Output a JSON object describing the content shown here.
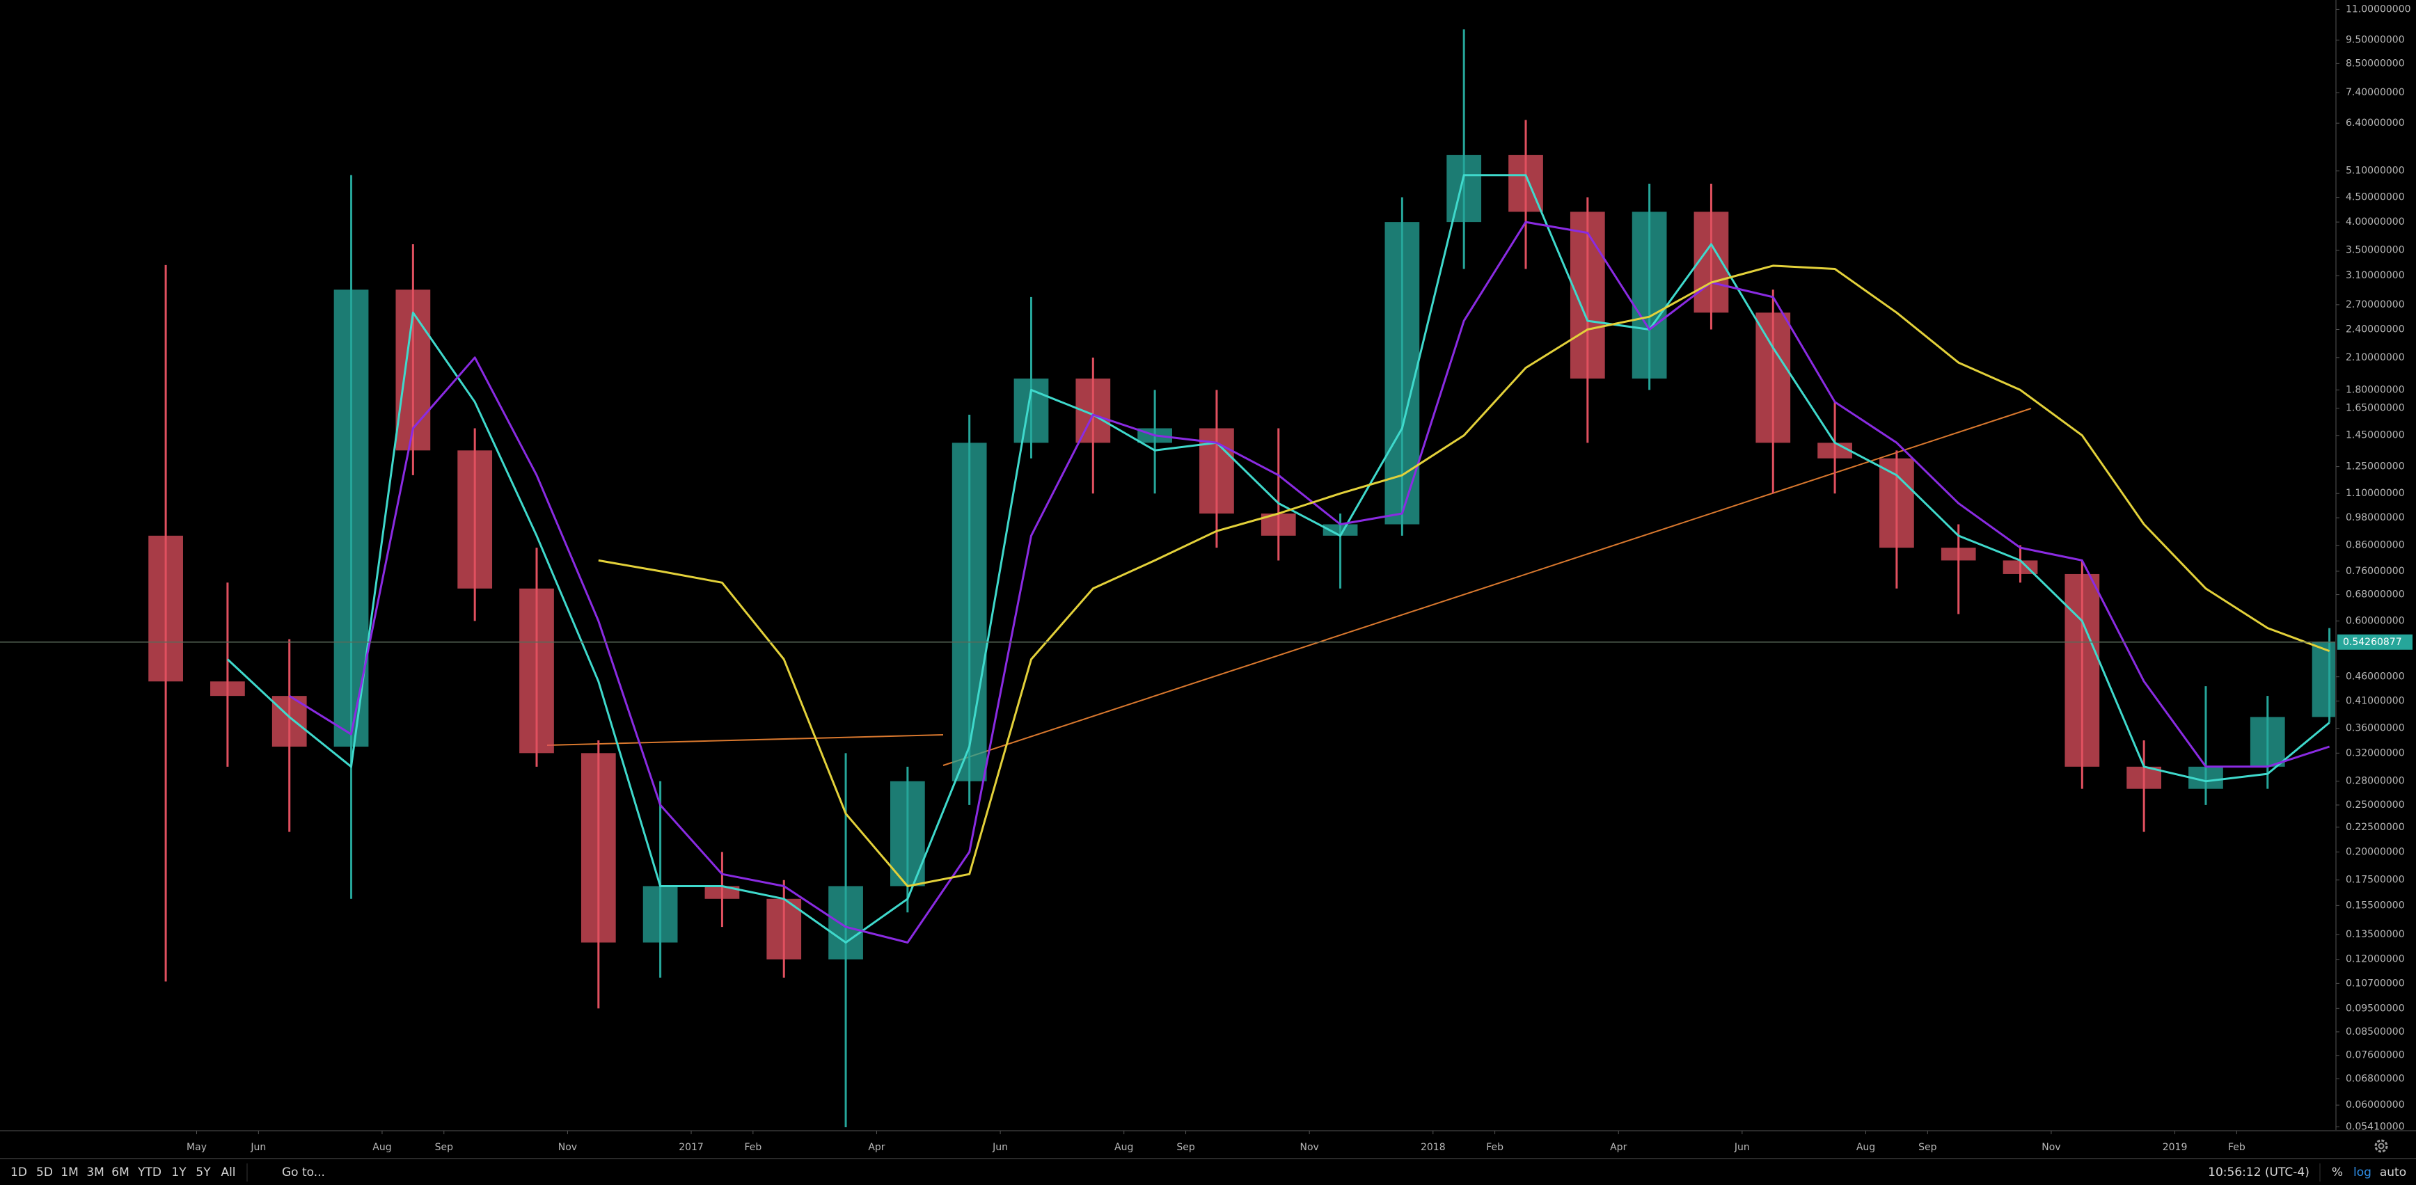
{
  "chart_data": {
    "type": "candlestick",
    "log_scale": true,
    "grid": false,
    "up_color": "#26a69a",
    "down_color": "#e0505f",
    "x": [
      "2016-04",
      "2016-05",
      "2016-06",
      "2016-07",
      "2016-08",
      "2016-09",
      "2016-10",
      "2016-11",
      "2016-12",
      "2017-01",
      "2017-02",
      "2017-03",
      "2017-04",
      "2017-05",
      "2017-06",
      "2017-07",
      "2017-08",
      "2017-09",
      "2017-10",
      "2017-11",
      "2017-12",
      "2018-01",
      "2018-02",
      "2018-03",
      "2018-04",
      "2018-05",
      "2018-06",
      "2018-07",
      "2018-08",
      "2018-09",
      "2018-10",
      "2018-11",
      "2018-12",
      "2019-01",
      "2019-02",
      "2019-03"
    ],
    "open": [
      0.9,
      0.45,
      0.42,
      0.33,
      2.9,
      1.35,
      0.7,
      0.32,
      0.13,
      0.17,
      0.16,
      0.12,
      0.17,
      0.28,
      1.4,
      1.9,
      1.4,
      1.5,
      1.0,
      0.9,
      0.95,
      4.0,
      5.5,
      4.2,
      1.9,
      4.2,
      2.6,
      1.4,
      1.3,
      0.85,
      0.8,
      0.75,
      0.3,
      0.27,
      0.3,
      0.38
    ],
    "high": [
      3.26,
      0.72,
      0.55,
      5.0,
      3.6,
      1.5,
      0.85,
      0.34,
      0.28,
      0.2,
      0.175,
      0.32,
      0.3,
      1.6,
      2.8,
      2.1,
      1.8,
      1.8,
      1.5,
      1.0,
      4.5,
      10.0,
      6.5,
      4.5,
      4.8,
      4.8,
      2.9,
      1.7,
      1.35,
      0.95,
      0.86,
      0.8,
      0.34,
      0.44,
      0.42,
      0.58
    ],
    "low": [
      0.108,
      0.3,
      0.22,
      0.16,
      1.2,
      0.6,
      0.3,
      0.095,
      0.11,
      0.14,
      0.11,
      0.054,
      0.15,
      0.25,
      1.3,
      1.1,
      1.1,
      0.85,
      0.8,
      0.7,
      0.9,
      3.2,
      3.2,
      1.4,
      1.8,
      2.4,
      1.1,
      1.1,
      0.7,
      0.62,
      0.72,
      0.27,
      0.22,
      0.25,
      0.27,
      0.37
    ],
    "close": [
      0.45,
      0.42,
      0.33,
      2.9,
      1.35,
      0.7,
      0.32,
      0.13,
      0.17,
      0.16,
      0.12,
      0.17,
      0.28,
      1.4,
      1.9,
      1.4,
      1.5,
      1.0,
      0.9,
      0.95,
      4.0,
      5.5,
      4.2,
      1.9,
      4.2,
      2.6,
      1.4,
      1.3,
      0.85,
      0.8,
      0.75,
      0.3,
      0.27,
      0.3,
      0.38,
      0.54260877
    ],
    "series": [
      {
        "color": "#3fd9cc",
        "values": [
          null,
          0.5,
          0.38,
          0.3,
          2.6,
          1.7,
          0.9,
          0.45,
          0.17,
          0.17,
          0.16,
          0.13,
          0.16,
          0.33,
          1.8,
          1.6,
          1.35,
          1.4,
          1.05,
          0.9,
          1.5,
          5.0,
          5.0,
          2.5,
          2.4,
          3.6,
          2.2,
          1.4,
          1.2,
          0.9,
          0.8,
          0.6,
          0.3,
          0.28,
          0.29,
          0.37
        ]
      },
      {
        "color": "#8a2be2",
        "values": [
          null,
          null,
          0.42,
          0.35,
          1.5,
          2.1,
          1.2,
          0.6,
          0.25,
          0.18,
          0.17,
          0.14,
          0.13,
          0.2,
          0.9,
          1.6,
          1.45,
          1.4,
          1.2,
          0.95,
          1.0,
          2.5,
          4.0,
          3.8,
          2.4,
          3.0,
          2.8,
          1.7,
          1.4,
          1.05,
          0.85,
          0.8,
          0.45,
          0.3,
          0.3,
          0.33
        ]
      },
      {
        "color": "#e3d13a",
        "values": [
          null,
          null,
          null,
          null,
          null,
          null,
          null,
          0.8,
          0.76,
          0.72,
          0.5,
          0.24,
          0.17,
          0.18,
          0.5,
          0.7,
          0.8,
          0.92,
          1.0,
          1.1,
          1.2,
          1.45,
          2.0,
          2.4,
          2.55,
          3.0,
          3.25,
          3.2,
          2.6,
          2.05,
          1.8,
          1.45,
          0.95,
          0.7,
          0.58,
          0.52
        ]
      }
    ],
    "last_price": 0.54260877,
    "xlim": [
      "2016-04",
      "2019-04"
    ],
    "xticks": [
      {
        "value": "2016-05",
        "label": "May"
      },
      {
        "value": "2016-06",
        "label": "Jun"
      },
      {
        "value": "2016-08",
        "label": "Aug"
      },
      {
        "value": "2016-09",
        "label": "Sep"
      },
      {
        "value": "2016-11",
        "label": "Nov"
      },
      {
        "value": "2017-01",
        "label": "2017"
      },
      {
        "value": "2017-02",
        "label": "Feb"
      },
      {
        "value": "2017-04",
        "label": "Apr"
      },
      {
        "value": "2017-06",
        "label": "Jun"
      },
      {
        "value": "2017-08",
        "label": "Aug"
      },
      {
        "value": "2017-09",
        "label": "Sep"
      },
      {
        "value": "2017-11",
        "label": "Nov"
      },
      {
        "value": "2018-01",
        "label": "2018"
      },
      {
        "value": "2018-02",
        "label": "Feb"
      },
      {
        "value": "2018-04",
        "label": "Apr"
      },
      {
        "value": "2018-06",
        "label": "Jun"
      },
      {
        "value": "2018-08",
        "label": "Aug"
      },
      {
        "value": "2018-09",
        "label": "Sep"
      },
      {
        "value": "2018-11",
        "label": "Nov"
      },
      {
        "value": "2019-01",
        "label": "2019"
      },
      {
        "value": "2019-02",
        "label": "Feb"
      }
    ],
    "ylim": [
      0.054,
      11.5
    ],
    "yticks": [
      {
        "value": 11,
        "label": "11.00000000"
      },
      {
        "value": 9.5,
        "label": "9.50000000"
      },
      {
        "value": 8.5,
        "label": "8.50000000"
      },
      {
        "value": 7.4,
        "label": "7.40000000"
      },
      {
        "value": 6.4,
        "label": "6.40000000"
      },
      {
        "value": 5.1,
        "label": "5.10000000"
      },
      {
        "value": 4.5,
        "label": "4.50000000"
      },
      {
        "value": 4.0,
        "label": "4.00000000"
      },
      {
        "value": 3.5,
        "label": "3.50000000"
      },
      {
        "value": 3.1,
        "label": "3.10000000"
      },
      {
        "value": 2.7,
        "label": "2.70000000"
      },
      {
        "value": 2.4,
        "label": "2.40000000"
      },
      {
        "value": 2.1,
        "label": "2.10000000"
      },
      {
        "value": 1.8,
        "label": "1.80000000"
      },
      {
        "value": 1.65,
        "label": "1.65000000"
      },
      {
        "value": 1.45,
        "label": "1.45000000"
      },
      {
        "value": 1.25,
        "label": "1.25000000"
      },
      {
        "value": 1.1,
        "label": "1.10000000"
      },
      {
        "value": 0.98,
        "label": "0.98000000"
      },
      {
        "value": 0.86,
        "label": "0.86000000"
      },
      {
        "value": 0.76,
        "label": "0.76000000"
      },
      {
        "value": 0.68,
        "label": "0.68000000"
      },
      {
        "value": 0.6,
        "label": "0.60000000"
      },
      {
        "value": 0.46,
        "label": "0.46000000"
      },
      {
        "value": 0.41,
        "label": "0.41000000"
      },
      {
        "value": 0.36,
        "label": "0.36000000"
      },
      {
        "value": 0.32,
        "label": "0.32000000"
      },
      {
        "value": 0.28,
        "label": "0.28000000"
      },
      {
        "value": 0.25,
        "label": "0.25000000"
      },
      {
        "value": 0.225,
        "label": "0.22500000"
      },
      {
        "value": 0.2,
        "label": "0.20000000"
      },
      {
        "value": 0.175,
        "label": "0.17500000"
      },
      {
        "value": 0.155,
        "label": "0.15500000"
      },
      {
        "value": 0.135,
        "label": "0.13500000"
      },
      {
        "value": 0.12,
        "label": "0.12000000"
      },
      {
        "value": 0.107,
        "label": "0.10700000"
      },
      {
        "value": 0.095,
        "label": "0.09500000"
      },
      {
        "value": 0.085,
        "label": "0.08500000"
      },
      {
        "value": 0.076,
        "label": "0.07600000"
      },
      {
        "value": 0.068,
        "label": "0.06800000"
      },
      {
        "value": 0.06,
        "label": "0.06000000"
      },
      {
        "value": 0.0541,
        "label": "0.05410000"
      }
    ]
  },
  "toolbar": {
    "ranges": [
      "1D",
      "5D",
      "1M",
      "3M",
      "6M",
      "YTD",
      "1Y",
      "5Y",
      "All"
    ],
    "goto": "Go to...",
    "time": "10:56:12 (UTC-4)",
    "scale_options": [
      "%",
      "log",
      "auto"
    ]
  }
}
